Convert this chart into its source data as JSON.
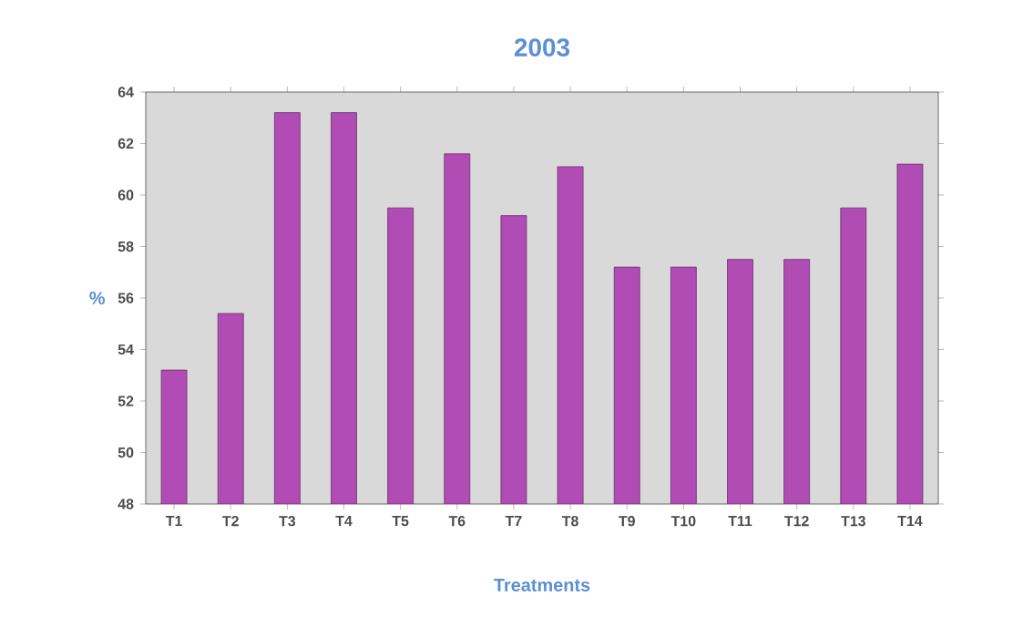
{
  "chart_data": {
    "type": "bar",
    "title": "2003",
    "xlabel": "Treatments",
    "ylabel": "%",
    "categories": [
      "T1",
      "T2",
      "T3",
      "T4",
      "T5",
      "T6",
      "T7",
      "T8",
      "T9",
      "T10",
      "T11",
      "T12",
      "T13",
      "T14"
    ],
    "values": [
      53.2,
      55.4,
      63.2,
      63.2,
      59.5,
      61.6,
      59.2,
      61.1,
      57.2,
      57.2,
      57.5,
      57.5,
      59.5,
      61.2
    ],
    "color": "#b04cb4",
    "ylim": [
      48,
      64
    ],
    "yticks": [
      48,
      50,
      52,
      54,
      56,
      58,
      60,
      62,
      64
    ],
    "grid": false
  }
}
